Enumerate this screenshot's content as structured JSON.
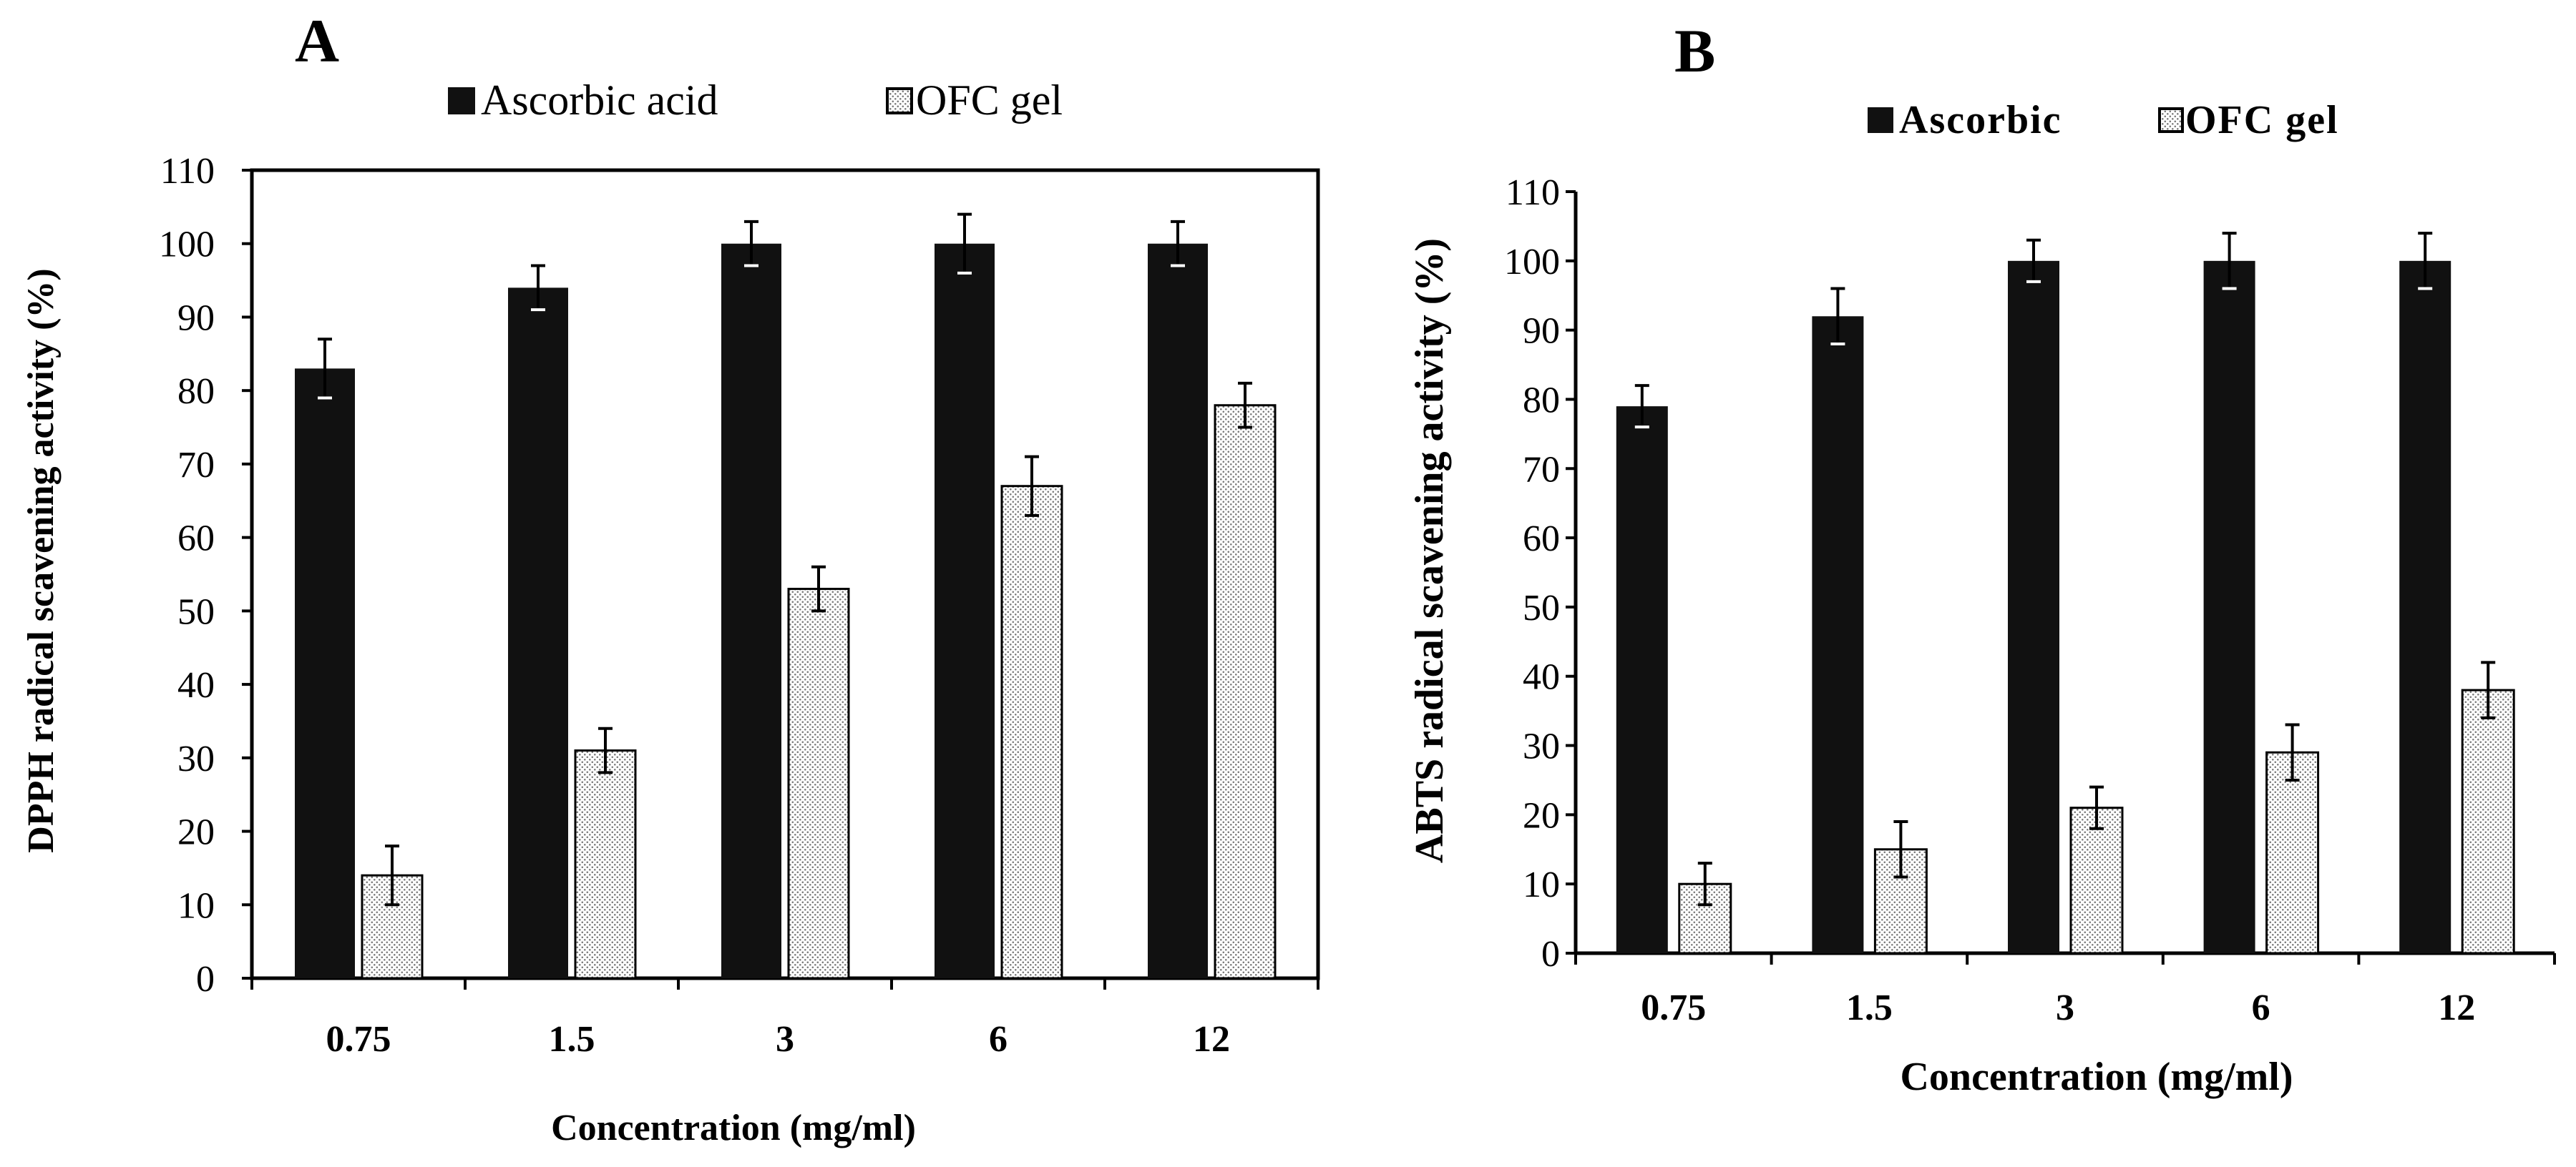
{
  "colors": {
    "ascorbic_fill": "#111111",
    "ofc_dot": "#7a7a7a",
    "ofc_bg": "#ffffff",
    "axis": "#000000",
    "frame": "#000000"
  },
  "chart_data": [
    {
      "type": "bar",
      "panel_label": "A",
      "title": "",
      "xlabel": "Concentration  (mg/ml)",
      "ylabel": "DPPH  radical scavening activity (%)",
      "categories": [
        "0.75",
        "1.5",
        "3",
        "6",
        "12"
      ],
      "ylim": [
        0,
        110
      ],
      "yticks": [
        0,
        10,
        20,
        30,
        40,
        50,
        60,
        70,
        80,
        90,
        100,
        110
      ],
      "grid": false,
      "legend": "top",
      "frame": true,
      "series": [
        {
          "name": "Ascorbic acid",
          "values": [
            83,
            94,
            100,
            100,
            100
          ],
          "errors": [
            4,
            3,
            3,
            4,
            3
          ]
        },
        {
          "name": "OFC gel",
          "values": [
            14,
            31,
            53,
            67,
            78
          ],
          "errors": [
            4,
            3,
            3,
            4,
            3
          ]
        }
      ]
    },
    {
      "type": "bar",
      "panel_label": "B",
      "title": "",
      "xlabel": "Concentration (mg/ml)",
      "ylabel": "ABTS  radical scavening activity (%)",
      "categories": [
        "0.75",
        "1.5",
        "3",
        "6",
        "12"
      ],
      "ylim": [
        0,
        110
      ],
      "yticks": [
        0,
        10,
        20,
        30,
        40,
        50,
        60,
        70,
        80,
        90,
        100,
        110
      ],
      "grid": false,
      "legend": "top",
      "frame": false,
      "series": [
        {
          "name": "Ascorbic",
          "values": [
            79,
            92,
            100,
            100,
            100
          ],
          "errors": [
            3,
            4,
            3,
            4,
            4
          ]
        },
        {
          "name": "OFC gel",
          "values": [
            10,
            15,
            21,
            29,
            38
          ],
          "errors": [
            3,
            4,
            3,
            4,
            4
          ]
        }
      ]
    }
  ]
}
